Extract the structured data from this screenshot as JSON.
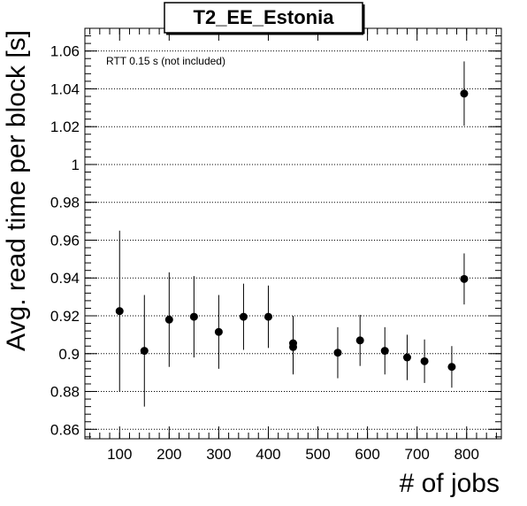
{
  "chart_data": {
    "type": "scatter",
    "title": "T2_EE_Estonia",
    "xlabel": "# of jobs",
    "ylabel": "Avg. read time per block [s]",
    "annotation": "RTT 0.15 s (not included)",
    "xlim": [
      30,
      870
    ],
    "ylim": [
      0.855,
      1.072
    ],
    "x_ticks": [
      100,
      200,
      300,
      400,
      500,
      600,
      700,
      800
    ],
    "y_ticks": [
      0.86,
      0.88,
      0.9,
      0.92,
      0.94,
      0.96,
      0.98,
      1,
      1.02,
      1.04,
      1.06
    ],
    "y_tick_labels": [
      "0.86",
      "0.88",
      "0.9",
      "0.92",
      "0.94",
      "0.96",
      "0.98",
      "1",
      "1.02",
      "1.04",
      "1.06"
    ],
    "grid": "horizontal dotted",
    "marker_color": "#000000",
    "points": [
      {
        "x": 100,
        "y": 0.9225,
        "err": 0.0425
      },
      {
        "x": 150,
        "y": 0.9015,
        "err": 0.0295
      },
      {
        "x": 200,
        "y": 0.918,
        "err": 0.025
      },
      {
        "x": 250,
        "y": 0.9195,
        "err": 0.0215
      },
      {
        "x": 300,
        "y": 0.9115,
        "err": 0.0195
      },
      {
        "x": 350,
        "y": 0.9195,
        "err": 0.0175
      },
      {
        "x": 400,
        "y": 0.9195,
        "err": 0.0165
      },
      {
        "x": 450,
        "y": 0.9055,
        "err": 0.0145
      },
      {
        "x": 450,
        "y": 0.9035,
        "err": 0.0145
      },
      {
        "x": 540,
        "y": 0.9005,
        "err": 0.0135
      },
      {
        "x": 585,
        "y": 0.907,
        "err": 0.0135
      },
      {
        "x": 635,
        "y": 0.9015,
        "err": 0.0125
      },
      {
        "x": 680,
        "y": 0.898,
        "err": 0.012
      },
      {
        "x": 715,
        "y": 0.896,
        "err": 0.0115
      },
      {
        "x": 770,
        "y": 0.893,
        "err": 0.011
      },
      {
        "x": 795,
        "y": 0.9395,
        "err": 0.0135
      },
      {
        "x": 795,
        "y": 1.0375,
        "err": 0.017
      }
    ]
  }
}
